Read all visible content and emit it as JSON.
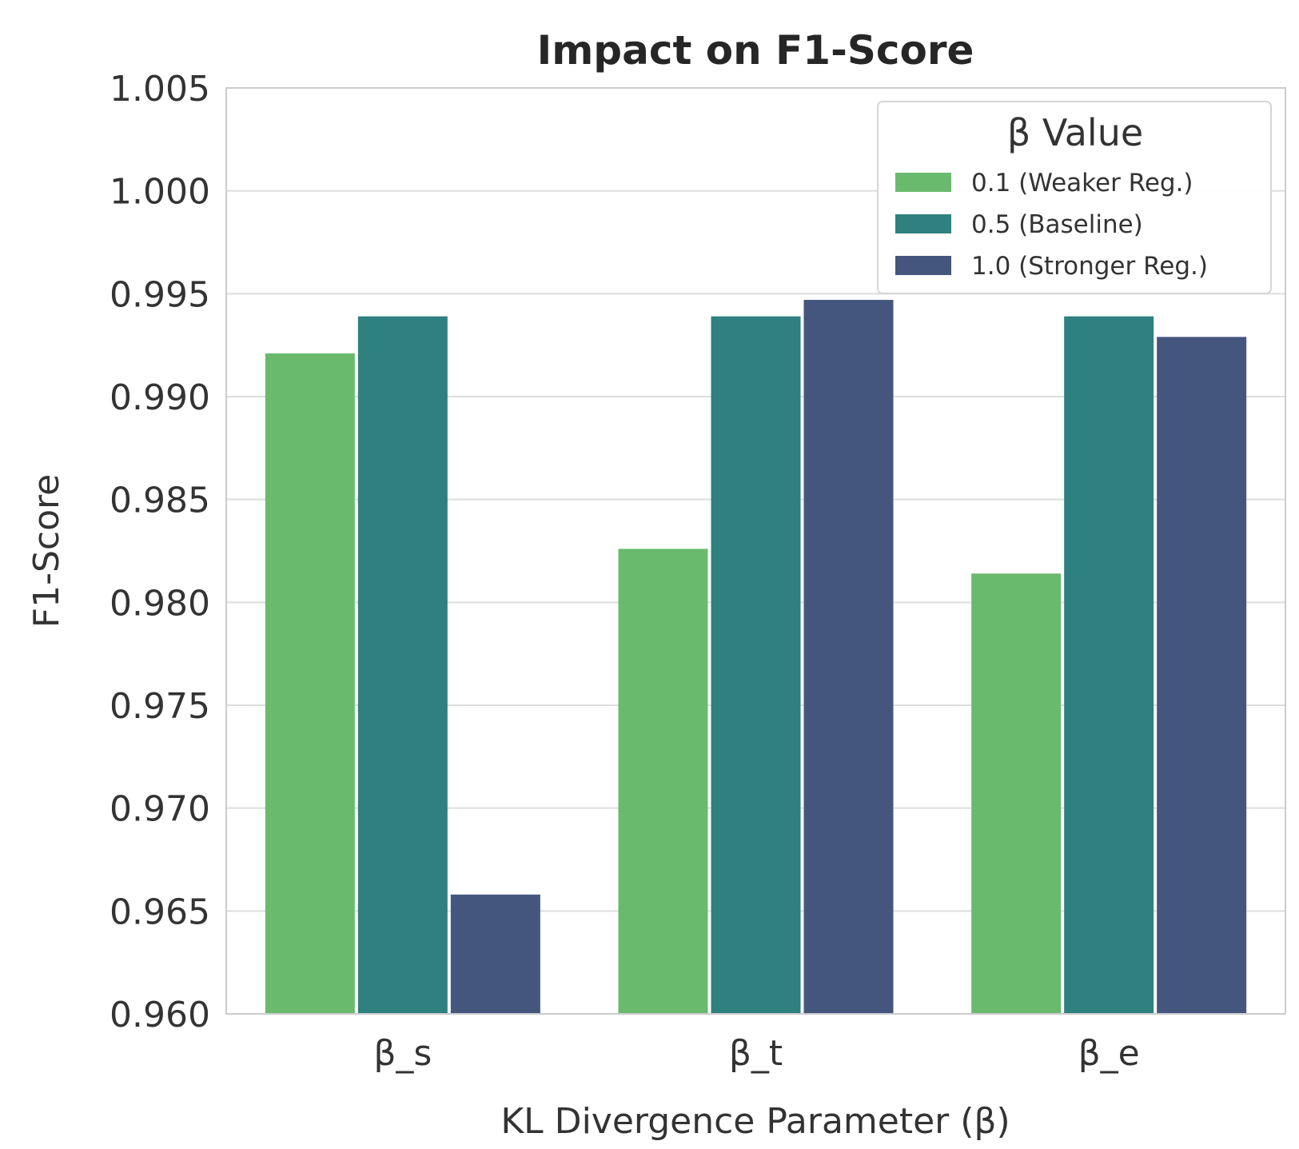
{
  "chart_data": {
    "type": "bar",
    "title": "Impact on F1-Score",
    "xlabel": "KL Divergence Parameter (β)",
    "ylabel": "F1-Score",
    "categories": [
      "β_s",
      "β_t",
      "β_e"
    ],
    "ylim": [
      0.96,
      1.005
    ],
    "yticks": [
      "0.960",
      "0.965",
      "0.970",
      "0.975",
      "0.980",
      "0.985",
      "0.990",
      "0.995",
      "1.000",
      "1.005"
    ],
    "grid": true,
    "legend": {
      "title": "β Value",
      "placement": "top-right"
    },
    "series": [
      {
        "name": "0.1 (Weaker Reg.)",
        "color": "#6aba6d",
        "values": [
          0.9921,
          0.9826,
          0.9814
        ]
      },
      {
        "name": "0.5 (Baseline)",
        "color": "#2e817e",
        "values": [
          0.9939,
          0.9939,
          0.9939
        ]
      },
      {
        "name": "1.0 (Stronger Reg.)",
        "color": "#45567e",
        "values": [
          0.9658,
          0.9947,
          0.9929
        ]
      }
    ]
  }
}
